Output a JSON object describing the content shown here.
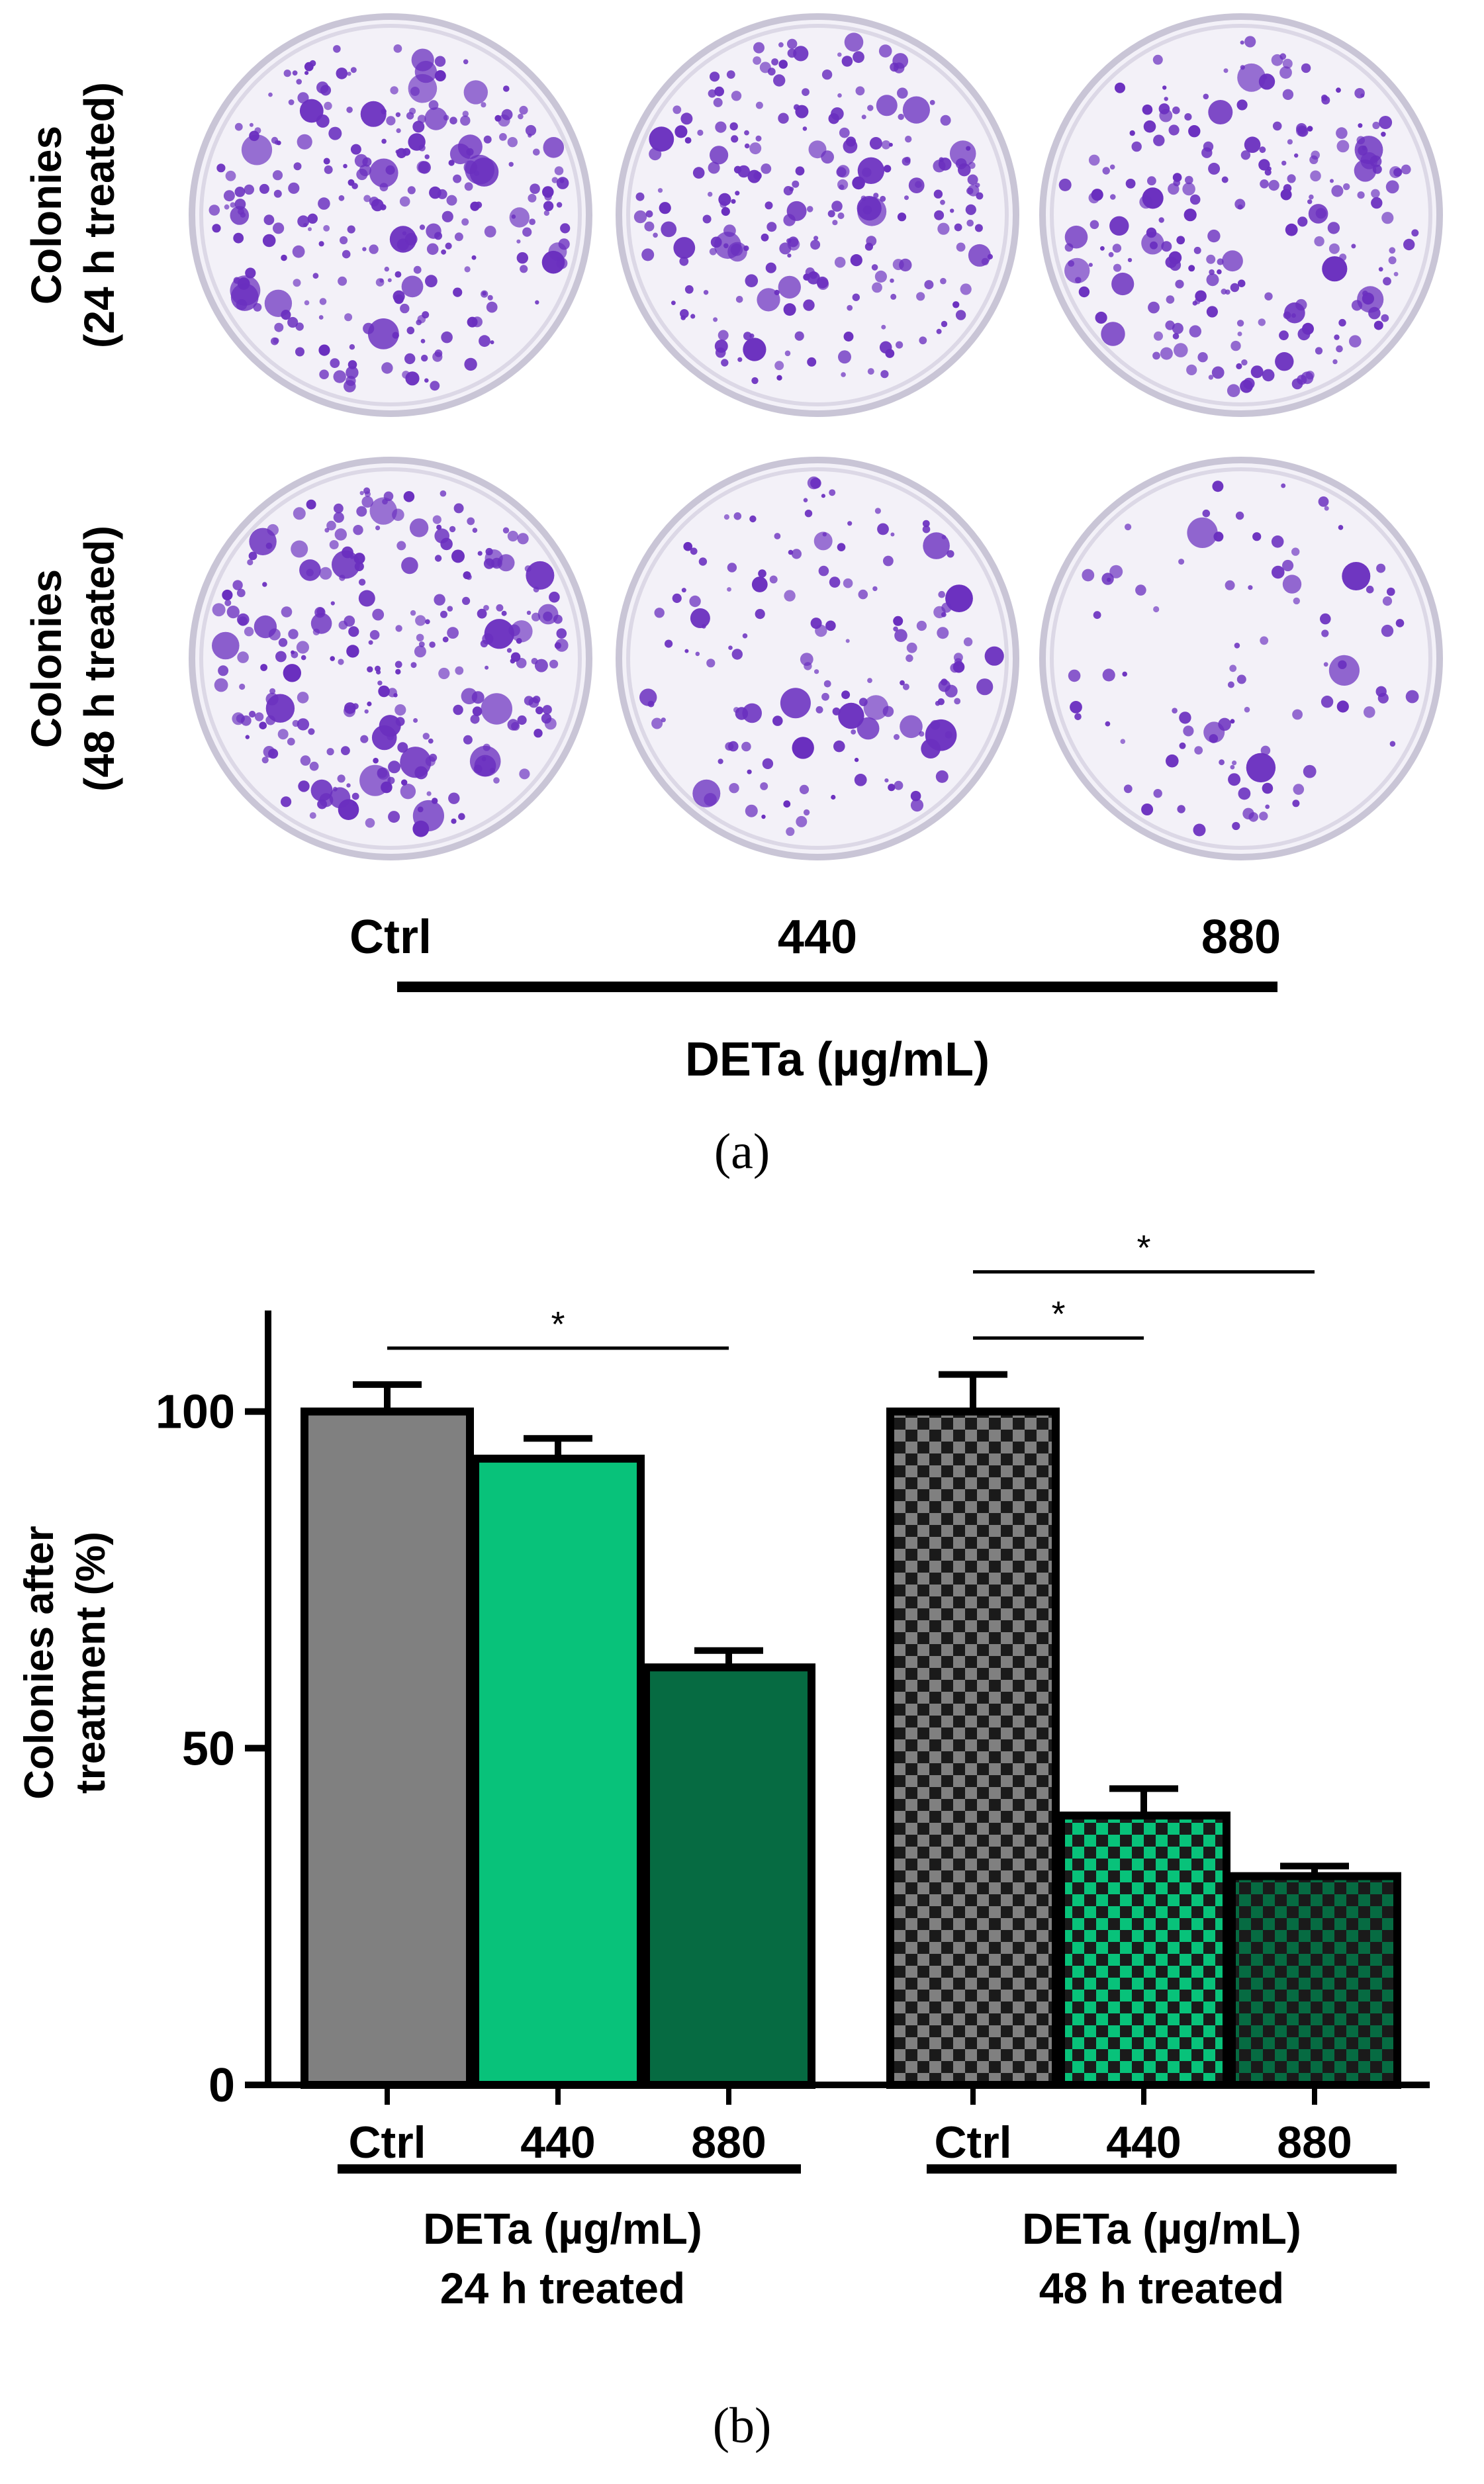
{
  "panel_a": {
    "row_labels": [
      {
        "line1": "Colonies",
        "line2": "(24 h treated)"
      },
      {
        "line1": "Colonies",
        "line2": "(48 h treated)"
      }
    ],
    "column_labels": [
      "Ctrl",
      "440",
      "880"
    ],
    "axis_title": "DETa (µg/mL)",
    "panel_label": "(a)",
    "colony_density": [
      [
        1.0,
        0.9,
        0.85
      ],
      [
        1.0,
        0.55,
        0.35
      ]
    ],
    "stain_color": "#6a2fbf",
    "dish_color": "#f3f1f8"
  },
  "chart_data": {
    "type": "bar",
    "ylabel_line1": "Colonies after",
    "ylabel_line2": "treatment (%)",
    "ylim": [
      0,
      115
    ],
    "yticks": [
      "0",
      "50",
      "100"
    ],
    "ytick_values": [
      0,
      50,
      100
    ],
    "groups": [
      {
        "treatment_label": "DETa (µg/mL)",
        "time_label": "24 h treated",
        "categories": [
          "Ctrl",
          "440",
          "880"
        ],
        "values": [
          100,
          93,
          62
        ],
        "errors": [
          4,
          3,
          2.5
        ],
        "colors": [
          "#808080",
          "#08c27a",
          "#066b42"
        ],
        "pattern": "solid"
      },
      {
        "treatment_label": "DETa (µg/mL)",
        "time_label": "48 h treated",
        "categories": [
          "Ctrl",
          "440",
          "880"
        ],
        "values": [
          100,
          40,
          31
        ],
        "errors": [
          5.5,
          4,
          1.5
        ],
        "colors": [
          "#808080",
          "#08c27a",
          "#066b42"
        ],
        "pattern": "checkered"
      }
    ],
    "significance": [
      {
        "group": 0,
        "from": 0,
        "to": 2,
        "label": "*"
      },
      {
        "group": 1,
        "from": 0,
        "to": 1,
        "label": "*"
      },
      {
        "group": 1,
        "from": 0,
        "to": 2,
        "label": "*"
      }
    ],
    "panel_label": "(b)"
  }
}
